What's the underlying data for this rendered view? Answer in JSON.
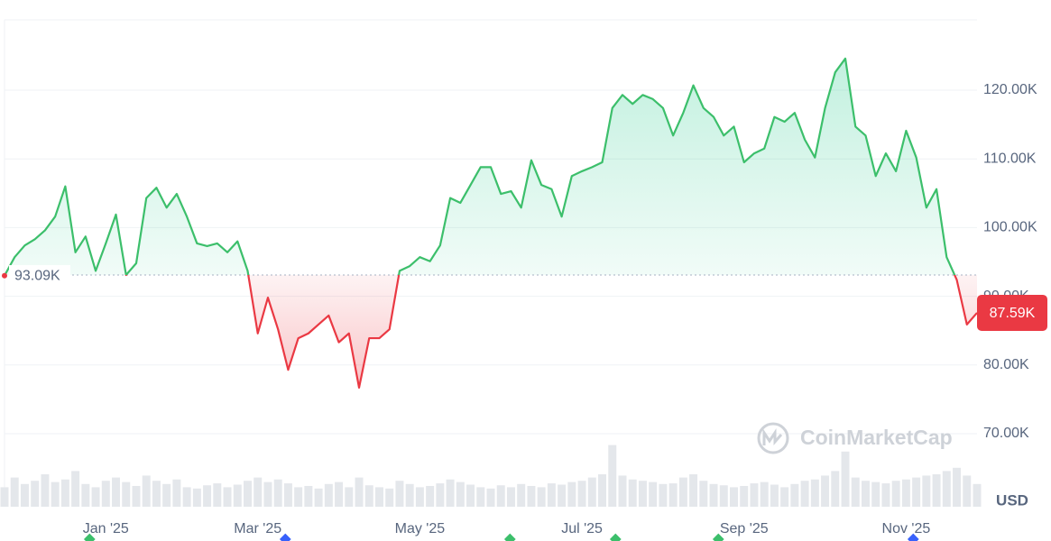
{
  "chart_data": {
    "type": "line",
    "categories": [
      null,
      null,
      null,
      null,
      null,
      null,
      null,
      null,
      null,
      null,
      "Jan '25",
      null,
      null,
      null,
      null,
      null,
      null,
      null,
      null,
      null,
      null,
      null,
      null,
      null,
      null,
      "Mar '25",
      null,
      null,
      null,
      null,
      null,
      null,
      null,
      null,
      null,
      null,
      null,
      null,
      null,
      null,
      null,
      "May '25",
      null,
      null,
      null,
      null,
      null,
      null,
      null,
      null,
      null,
      null,
      null,
      null,
      null,
      null,
      null,
      "Jul '25",
      null,
      null,
      null,
      null,
      null,
      null,
      null,
      null,
      null,
      null,
      null,
      null,
      null,
      null,
      null,
      "Sep '25",
      null,
      null,
      null,
      null,
      null,
      null,
      null,
      null,
      null,
      null,
      null,
      null,
      null,
      null,
      null,
      "Nov '25",
      null,
      null,
      null,
      null,
      null,
      null,
      null
    ],
    "values": [
      93000,
      95700,
      97400,
      98300,
      99600,
      101600,
      106000,
      96400,
      98700,
      93700,
      97700,
      101900,
      93100,
      94800,
      104300,
      105800,
      102900,
      104900,
      101600,
      97700,
      97300,
      97700,
      96400,
      98000,
      93700,
      84600,
      89800,
      85200,
      79300,
      83900,
      84600,
      85900,
      87200,
      83300,
      84600,
      76700,
      83900,
      83900,
      85200,
      93700,
      94400,
      95700,
      95100,
      97400,
      104300,
      103600,
      106200,
      108800,
      108800,
      104900,
      105300,
      102900,
      109800,
      106200,
      105600,
      101600,
      107500,
      108200,
      108800,
      109500,
      117400,
      119300,
      118000,
      119300,
      118700,
      117400,
      113400,
      116700,
      120700,
      117400,
      116100,
      113400,
      114700,
      109500,
      110800,
      111500,
      116100,
      115400,
      116700,
      112800,
      110200,
      117400,
      122600,
      124600,
      114700,
      113400,
      107500,
      110800,
      108200,
      114100,
      110200,
      102900,
      105600,
      95700,
      92400,
      85900,
      87590
    ],
    "up_color": "#3cbf6b",
    "down_color": "#ea3943",
    "baseline": {
      "value": 93090,
      "label": "93.09K"
    },
    "current_label": "87.59K",
    "volume": {
      "color": "#e4e7eb",
      "values": [
        30,
        45,
        35,
        40,
        50,
        38,
        42,
        55,
        35,
        30,
        40,
        45,
        38,
        32,
        48,
        40,
        35,
        42,
        30,
        28,
        33,
        36,
        30,
        34,
        40,
        45,
        38,
        42,
        36,
        30,
        32,
        28,
        35,
        38,
        30,
        45,
        33,
        30,
        28,
        40,
        35,
        30,
        32,
        36,
        42,
        38,
        34,
        30,
        28,
        33,
        30,
        35,
        32,
        30,
        36,
        34,
        38,
        40,
        45,
        50,
        95,
        48,
        42,
        40,
        38,
        35,
        36,
        45,
        50,
        40,
        35,
        33,
        30,
        32,
        36,
        38,
        34,
        30,
        35,
        40,
        42,
        48,
        55,
        85,
        45,
        40,
        38,
        36,
        40,
        42,
        45,
        48,
        50,
        55,
        60,
        48,
        35
      ]
    },
    "y2lim": [
      0,
      100
    ],
    "ylim": [
      60000,
      130000
    ],
    "yticks": [
      {
        "value": 70000,
        "label": "70.00K"
      },
      {
        "value": 80000,
        "label": "80.00K"
      },
      {
        "value": 90000,
        "label": "90.00K"
      },
      {
        "value": 100000,
        "label": "100.00K"
      },
      {
        "value": 110000,
        "label": "110.00K"
      },
      {
        "value": 120000,
        "label": "120.00K"
      }
    ],
    "grid": true,
    "currency": "USD",
    "watermark": "CoinMarketCap"
  }
}
